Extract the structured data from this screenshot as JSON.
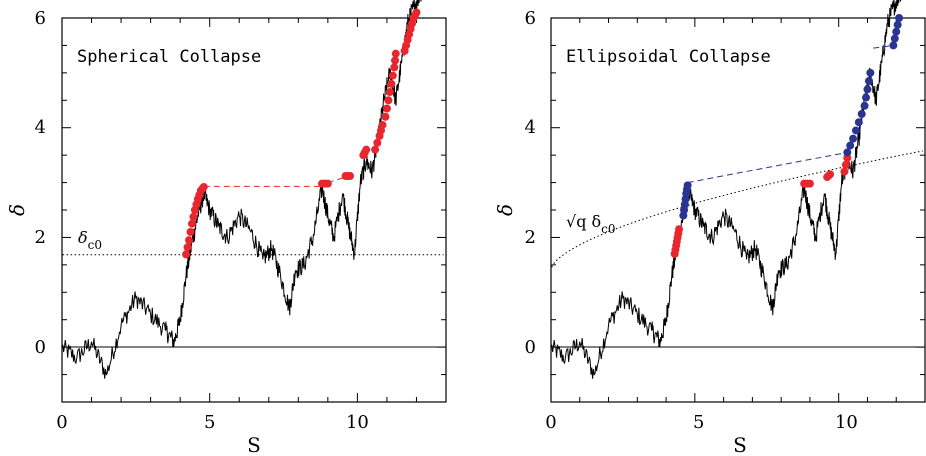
{
  "chart_data": [
    {
      "type": "line",
      "title": "Spherical Collapse",
      "title_color": "#e8262d",
      "xlabel": "S",
      "ylabel": "δ",
      "xlim": [
        0,
        13
      ],
      "ylim": [
        -1,
        6
      ],
      "xticks": [
        0,
        5,
        10
      ],
      "yticks": [
        0,
        2,
        4,
        6
      ],
      "grid": false,
      "threshold": {
        "label": "δ",
        "label_sub": "c0",
        "curve": "constant",
        "value": 1.686,
        "style": "dotted"
      },
      "random_walk": {
        "color": "#000000",
        "x": [
          0,
          0.5,
          1.0,
          1.5,
          2.0,
          2.5,
          3.0,
          3.5,
          3.8,
          4.0,
          4.2,
          4.4,
          4.6,
          4.8,
          5.0,
          5.3,
          5.6,
          6.0,
          6.4,
          6.8,
          7.1,
          7.4,
          7.7,
          7.9,
          8.2,
          8.5,
          8.8,
          9.0,
          9.2,
          9.5,
          9.7,
          9.9,
          10.1,
          10.3,
          10.5,
          10.7,
          10.9,
          11.1,
          11.3,
          11.5,
          11.7,
          11.9,
          12.1,
          12.4,
          12.7,
          13.0
        ],
        "y": [
          0,
          -0.2,
          0.1,
          -0.5,
          0.4,
          0.9,
          0.6,
          0.3,
          0.1,
          0.5,
          1.3,
          1.9,
          2.4,
          2.8,
          2.5,
          2.2,
          2.0,
          2.4,
          2.1,
          1.6,
          1.8,
          1.3,
          0.7,
          1.4,
          1.5,
          2.0,
          2.9,
          2.4,
          2.0,
          2.8,
          2.2,
          1.7,
          3.0,
          3.4,
          3.2,
          3.8,
          4.5,
          5.0,
          4.5,
          5.2,
          5.9,
          6.2,
          6.4,
          6.8,
          7.0,
          7.2
        ]
      },
      "collapse_points": {
        "color": "#e8262d",
        "segments": [
          {
            "x": [
              4.2,
              4.3,
              4.4,
              4.5,
              4.6,
              4.7,
              4.8
            ],
            "y": [
              1.69,
              1.95,
              2.25,
              2.5,
              2.7,
              2.85,
              2.92
            ]
          },
          {
            "x": [
              8.8,
              9.0
            ],
            "y": [
              2.98,
              2.98
            ]
          },
          {
            "x": [
              9.6,
              9.75
            ],
            "y": [
              3.12,
              3.12
            ]
          },
          {
            "x": [
              10.2,
              10.3
            ],
            "y": [
              3.5,
              3.6
            ]
          },
          {
            "x": [
              10.6,
              10.75,
              10.85
            ],
            "y": [
              3.6,
              3.85,
              4.05
            ]
          },
          {
            "x": [
              10.95,
              11.05,
              11.15,
              11.25,
              11.3
            ],
            "y": [
              4.2,
              4.5,
              4.8,
              5.1,
              5.35
            ]
          },
          {
            "x": [
              11.6,
              11.7,
              11.8,
              11.9,
              12.0
            ],
            "y": [
              5.4,
              5.6,
              5.8,
              6.0,
              6.1
            ]
          }
        ]
      },
      "plateau_lines": [
        {
          "x": [
            4.8,
            8.8
          ],
          "y": [
            2.93,
            2.93
          ]
        },
        {
          "x": [
            9.0,
            9.6
          ],
          "y": [
            3.0,
            3.1
          ]
        }
      ]
    },
    {
      "type": "line",
      "title": "Ellipsoidal Collapse",
      "title_color": "#2b3591",
      "xlabel": "S",
      "ylabel": "δ",
      "xlim": [
        0,
        13
      ],
      "ylim": [
        -1,
        6
      ],
      "xticks": [
        0,
        5,
        10
      ],
      "yticks": [
        0,
        2,
        4,
        6
      ],
      "grid": false,
      "threshold": {
        "label": "√q δ",
        "label_sub": "c0",
        "curve": "ellipsoidal",
        "style": "dotted"
      },
      "random_walk": {
        "color": "#000000",
        "x": [
          0,
          0.5,
          1.0,
          1.5,
          2.0,
          2.5,
          3.0,
          3.5,
          3.8,
          4.0,
          4.2,
          4.4,
          4.6,
          4.8,
          5.0,
          5.3,
          5.6,
          6.0,
          6.4,
          6.8,
          7.1,
          7.4,
          7.7,
          7.9,
          8.2,
          8.5,
          8.8,
          9.0,
          9.2,
          9.5,
          9.7,
          9.9,
          10.1,
          10.3,
          10.5,
          10.7,
          10.9,
          11.1,
          11.3,
          11.5,
          11.7,
          11.9,
          12.1,
          12.4,
          12.7,
          13.0
        ],
        "y": [
          0,
          -0.2,
          0.1,
          -0.5,
          0.4,
          0.9,
          0.6,
          0.3,
          0.1,
          0.5,
          1.3,
          1.9,
          2.4,
          2.8,
          2.5,
          2.2,
          2.0,
          2.4,
          2.1,
          1.6,
          1.8,
          1.3,
          0.7,
          1.4,
          1.5,
          2.0,
          2.9,
          2.4,
          2.0,
          2.8,
          2.2,
          1.7,
          3.0,
          3.4,
          3.2,
          3.8,
          4.5,
          5.0,
          4.5,
          5.2,
          5.9,
          6.2,
          6.4,
          6.8,
          7.0,
          7.2
        ]
      },
      "collapse_points": {
        "segments": [
          {
            "color": "#e8262d",
            "x": [
              4.3,
              4.35,
              4.4,
              4.45
            ],
            "y": [
              1.7,
              1.85,
              2.0,
              2.15
            ]
          },
          {
            "color": "#2b3591",
            "x": [
              4.6,
              4.65,
              4.7,
              4.75
            ],
            "y": [
              2.4,
              2.6,
              2.8,
              2.95
            ]
          },
          {
            "color": "#e8262d",
            "x": [
              8.8,
              9.0
            ],
            "y": [
              2.98,
              2.98
            ]
          },
          {
            "color": "#e8262d",
            "x": [
              9.6,
              9.7
            ],
            "y": [
              3.1,
              3.15
            ]
          },
          {
            "color": "#e8262d",
            "x": [
              10.2,
              10.3
            ],
            "y": [
              3.2,
              3.45
            ]
          },
          {
            "color": "#2b3591",
            "x": [
              10.3,
              10.5,
              10.7,
              10.9,
              11.0,
              11.1
            ],
            "y": [
              3.55,
              3.8,
              4.1,
              4.4,
              4.7,
              5.0
            ]
          },
          {
            "color": "#2b3591",
            "x": [
              11.9,
              12.0,
              12.1
            ],
            "y": [
              5.5,
              5.75,
              6.0
            ]
          }
        ]
      },
      "plateau_lines": [
        {
          "x": [
            4.75,
            10.3
          ],
          "y": [
            3.0,
            3.55
          ]
        },
        {
          "x": [
            11.2,
            11.9
          ],
          "y": [
            5.45,
            5.5
          ]
        }
      ]
    }
  ]
}
